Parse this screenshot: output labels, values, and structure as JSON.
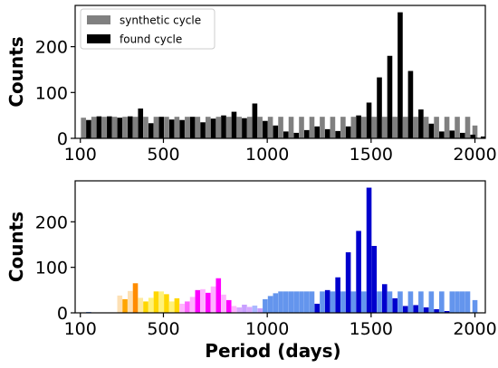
{
  "chart_data": [
    {
      "type": "bar",
      "panel": "top",
      "ylabel": "Counts",
      "xlabel": "",
      "xlim": [
        75,
        2050
      ],
      "ylim": [
        0,
        290
      ],
      "xticks": [
        100,
        500,
        1000,
        1500,
        2000
      ],
      "yticks": [
        0,
        100,
        200
      ],
      "grid": false,
      "legend_position": "top-left",
      "series": [
        {
          "name": "synthetic cycle",
          "color": "#808080",
          "points": [
            {
              "x": 115,
              "y": 45
            },
            {
              "x": 165,
              "y": 47
            },
            {
              "x": 215,
              "y": 47
            },
            {
              "x": 265,
              "y": 47
            },
            {
              "x": 315,
              "y": 47
            },
            {
              "x": 365,
              "y": 47
            },
            {
              "x": 415,
              "y": 47
            },
            {
              "x": 465,
              "y": 47
            },
            {
              "x": 515,
              "y": 47
            },
            {
              "x": 565,
              "y": 47
            },
            {
              "x": 615,
              "y": 47
            },
            {
              "x": 665,
              "y": 47
            },
            {
              "x": 715,
              "y": 47
            },
            {
              "x": 765,
              "y": 47
            },
            {
              "x": 815,
              "y": 47
            },
            {
              "x": 865,
              "y": 47
            },
            {
              "x": 915,
              "y": 47
            },
            {
              "x": 965,
              "y": 47
            },
            {
              "x": 1015,
              "y": 47
            },
            {
              "x": 1065,
              "y": 47
            },
            {
              "x": 1115,
              "y": 47
            },
            {
              "x": 1165,
              "y": 47
            },
            {
              "x": 1215,
              "y": 47
            },
            {
              "x": 1265,
              "y": 47
            },
            {
              "x": 1315,
              "y": 47
            },
            {
              "x": 1365,
              "y": 47
            },
            {
              "x": 1415,
              "y": 47
            },
            {
              "x": 1465,
              "y": 47
            },
            {
              "x": 1515,
              "y": 47
            },
            {
              "x": 1565,
              "y": 47
            },
            {
              "x": 1615,
              "y": 47
            },
            {
              "x": 1665,
              "y": 47
            },
            {
              "x": 1715,
              "y": 47
            },
            {
              "x": 1765,
              "y": 47
            },
            {
              "x": 1815,
              "y": 47
            },
            {
              "x": 1865,
              "y": 47
            },
            {
              "x": 1915,
              "y": 47
            },
            {
              "x": 1965,
              "y": 47
            },
            {
              "x": 2000,
              "y": 28
            }
          ]
        },
        {
          "name": "found cycle",
          "color": "#000000",
          "points": [
            {
              "x": 140,
              "y": 40
            },
            {
              "x": 190,
              "y": 48
            },
            {
              "x": 240,
              "y": 48
            },
            {
              "x": 290,
              "y": 45
            },
            {
              "x": 340,
              "y": 48
            },
            {
              "x": 390,
              "y": 65
            },
            {
              "x": 440,
              "y": 33
            },
            {
              "x": 490,
              "y": 47
            },
            {
              "x": 540,
              "y": 41
            },
            {
              "x": 590,
              "y": 40
            },
            {
              "x": 640,
              "y": 47
            },
            {
              "x": 690,
              "y": 35
            },
            {
              "x": 740,
              "y": 43
            },
            {
              "x": 790,
              "y": 50
            },
            {
              "x": 840,
              "y": 58
            },
            {
              "x": 890,
              "y": 44
            },
            {
              "x": 940,
              "y": 76
            },
            {
              "x": 990,
              "y": 38
            },
            {
              "x": 1040,
              "y": 28
            },
            {
              "x": 1090,
              "y": 15
            },
            {
              "x": 1140,
              "y": 12
            },
            {
              "x": 1190,
              "y": 18
            },
            {
              "x": 1240,
              "y": 26
            },
            {
              "x": 1290,
              "y": 20
            },
            {
              "x": 1340,
              "y": 16
            },
            {
              "x": 1390,
              "y": 26
            },
            {
              "x": 1440,
              "y": 50
            },
            {
              "x": 1490,
              "y": 78
            },
            {
              "x": 1540,
              "y": 133
            },
            {
              "x": 1590,
              "y": 180
            },
            {
              "x": 1640,
              "y": 275
            },
            {
              "x": 1690,
              "y": 147
            },
            {
              "x": 1740,
              "y": 63
            },
            {
              "x": 1790,
              "y": 32
            },
            {
              "x": 1840,
              "y": 15
            },
            {
              "x": 1890,
              "y": 17
            },
            {
              "x": 1940,
              "y": 12
            },
            {
              "x": 1990,
              "y": 8
            },
            {
              "x": 2040,
              "y": 4
            }
          ]
        }
      ]
    },
    {
      "type": "bar",
      "panel": "bottom",
      "ylabel": "Counts",
      "xlabel": "Period (days)",
      "xlim": [
        75,
        2050
      ],
      "ylim": [
        0,
        290
      ],
      "xticks": [
        100,
        500,
        1000,
        1500,
        2000
      ],
      "yticks": [
        0,
        100,
        200
      ],
      "grid": false,
      "bars": [
        {
          "x": 140,
          "y": 2,
          "color": "#6495ed"
        },
        {
          "x": 290,
          "y": 38,
          "color": "#fde0b4"
        },
        {
          "x": 315,
          "y": 30,
          "color": "#ffa500"
        },
        {
          "x": 340,
          "y": 48,
          "color": "#fde0b4"
        },
        {
          "x": 365,
          "y": 65,
          "color": "#ff8c00"
        },
        {
          "x": 390,
          "y": 33,
          "color": "#fde9a0"
        },
        {
          "x": 415,
          "y": 25,
          "color": "#ffd700"
        },
        {
          "x": 440,
          "y": 33,
          "color": "#fff27a"
        },
        {
          "x": 465,
          "y": 47,
          "color": "#ffd700"
        },
        {
          "x": 490,
          "y": 47,
          "color": "#fff27a"
        },
        {
          "x": 515,
          "y": 41,
          "color": "#ffd700"
        },
        {
          "x": 540,
          "y": 25,
          "color": "#fff27a"
        },
        {
          "x": 565,
          "y": 32,
          "color": "#ffd700"
        },
        {
          "x": 590,
          "y": 20,
          "color": "#ffb2ff"
        },
        {
          "x": 615,
          "y": 25,
          "color": "#ff66ff"
        },
        {
          "x": 640,
          "y": 35,
          "color": "#ffb2ff"
        },
        {
          "x": 665,
          "y": 50,
          "color": "#ff00ff"
        },
        {
          "x": 690,
          "y": 52,
          "color": "#ffb2ff"
        },
        {
          "x": 715,
          "y": 44,
          "color": "#ff00ff"
        },
        {
          "x": 740,
          "y": 58,
          "color": "#ffb2ff"
        },
        {
          "x": 765,
          "y": 76,
          "color": "#ff00ff"
        },
        {
          "x": 790,
          "y": 40,
          "color": "#ffb2ff"
        },
        {
          "x": 815,
          "y": 28,
          "color": "#ff00ff"
        },
        {
          "x": 840,
          "y": 15,
          "color": "#ffb2ff"
        },
        {
          "x": 865,
          "y": 12,
          "color": "#d8a8ff"
        },
        {
          "x": 890,
          "y": 18,
          "color": "#c8a0ff"
        },
        {
          "x": 915,
          "y": 13,
          "color": "#d8a8ff"
        },
        {
          "x": 940,
          "y": 16,
          "color": "#aab8ff"
        },
        {
          "x": 965,
          "y": 10,
          "color": "#c8a0ff"
        },
        {
          "x": 990,
          "y": 30,
          "color": "#6495ed"
        },
        {
          "x": 1015,
          "y": 37,
          "color": "#6495ed"
        },
        {
          "x": 1040,
          "y": 43,
          "color": "#6495ed"
        },
        {
          "x": 1065,
          "y": 47,
          "color": "#6495ed"
        },
        {
          "x": 1090,
          "y": 47,
          "color": "#6495ed"
        },
        {
          "x": 1115,
          "y": 47,
          "color": "#6495ed"
        },
        {
          "x": 1140,
          "y": 47,
          "color": "#6495ed"
        },
        {
          "x": 1165,
          "y": 47,
          "color": "#6495ed"
        },
        {
          "x": 1190,
          "y": 47,
          "color": "#6495ed"
        },
        {
          "x": 1215,
          "y": 47,
          "color": "#6495ed"
        },
        {
          "x": 1240,
          "y": 20,
          "color": "#0000cd"
        },
        {
          "x": 1265,
          "y": 47,
          "color": "#6495ed"
        },
        {
          "x": 1290,
          "y": 50,
          "color": "#0000cd"
        },
        {
          "x": 1315,
          "y": 47,
          "color": "#6495ed"
        },
        {
          "x": 1340,
          "y": 78,
          "color": "#0000cd"
        },
        {
          "x": 1365,
          "y": 47,
          "color": "#6495ed"
        },
        {
          "x": 1390,
          "y": 133,
          "color": "#0000cd"
        },
        {
          "x": 1415,
          "y": 47,
          "color": "#6495ed"
        },
        {
          "x": 1440,
          "y": 180,
          "color": "#0000cd"
        },
        {
          "x": 1465,
          "y": 47,
          "color": "#6495ed"
        },
        {
          "x": 1490,
          "y": 275,
          "color": "#0000cd"
        },
        {
          "x": 1515,
          "y": 147,
          "color": "#0000cd"
        },
        {
          "x": 1540,
          "y": 47,
          "color": "#6495ed"
        },
        {
          "x": 1565,
          "y": 63,
          "color": "#0000cd"
        },
        {
          "x": 1590,
          "y": 47,
          "color": "#6495ed"
        },
        {
          "x": 1615,
          "y": 32,
          "color": "#0000cd"
        },
        {
          "x": 1640,
          "y": 47,
          "color": "#6495ed"
        },
        {
          "x": 1665,
          "y": 15,
          "color": "#0000cd"
        },
        {
          "x": 1690,
          "y": 47,
          "color": "#6495ed"
        },
        {
          "x": 1715,
          "y": 17,
          "color": "#0000cd"
        },
        {
          "x": 1740,
          "y": 47,
          "color": "#6495ed"
        },
        {
          "x": 1765,
          "y": 12,
          "color": "#0000cd"
        },
        {
          "x": 1790,
          "y": 47,
          "color": "#6495ed"
        },
        {
          "x": 1815,
          "y": 8,
          "color": "#0000cd"
        },
        {
          "x": 1840,
          "y": 47,
          "color": "#6495ed"
        },
        {
          "x": 1865,
          "y": 4,
          "color": "#0000cd"
        },
        {
          "x": 1890,
          "y": 47,
          "color": "#6495ed"
        },
        {
          "x": 1915,
          "y": 47,
          "color": "#6495ed"
        },
        {
          "x": 1940,
          "y": 47,
          "color": "#6495ed"
        },
        {
          "x": 1965,
          "y": 47,
          "color": "#6495ed"
        },
        {
          "x": 2000,
          "y": 28,
          "color": "#6495ed"
        }
      ]
    }
  ]
}
